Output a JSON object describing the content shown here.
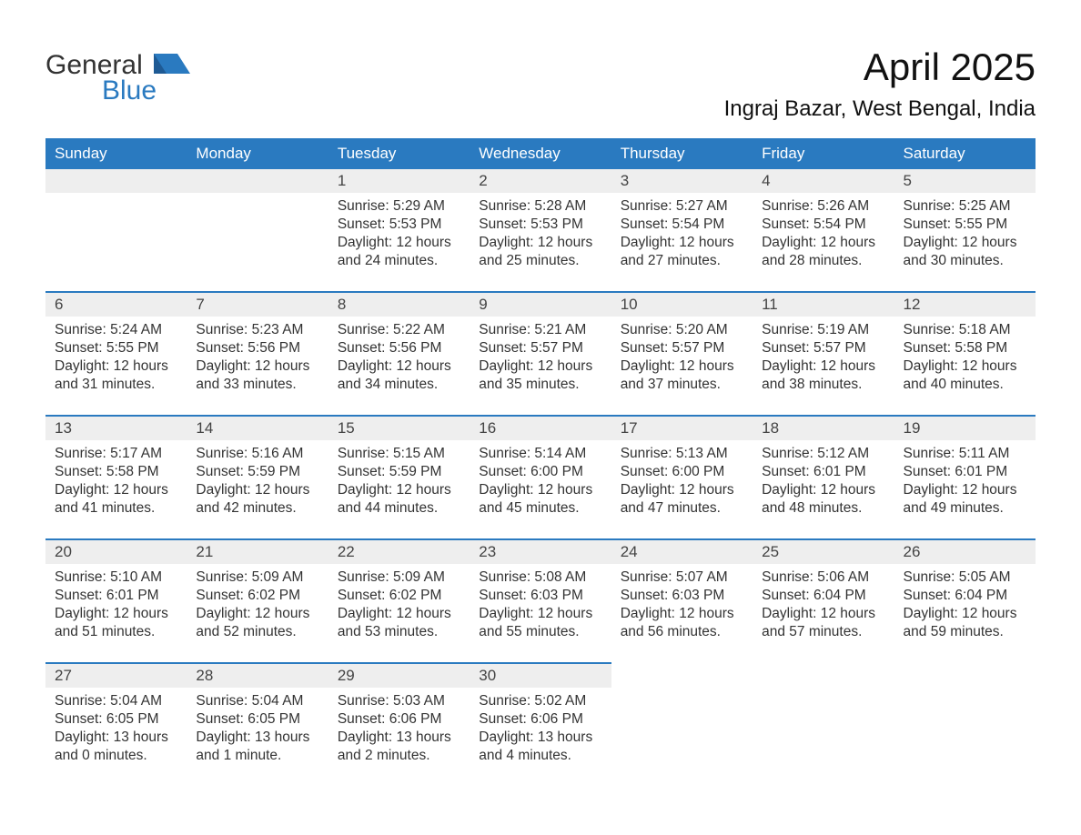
{
  "brand": {
    "part1": "General",
    "part2": "Blue"
  },
  "title": "April 2025",
  "location": "Ingraj Bazar, West Bengal, India",
  "colors": {
    "header_bg": "#2a7ac0",
    "header_text": "#ffffff",
    "daynum_bg": "#eeeeee",
    "border": "#2a7ac0",
    "body_text": "#333333",
    "page_bg": "#ffffff"
  },
  "fonts": {
    "title_size": 42,
    "location_size": 24,
    "header_size": 17,
    "body_size": 15.5
  },
  "weekdays": [
    "Sunday",
    "Monday",
    "Tuesday",
    "Wednesday",
    "Thursday",
    "Friday",
    "Saturday"
  ],
  "weeks": [
    [
      null,
      null,
      {
        "d": "1",
        "sr": "Sunrise: 5:29 AM",
        "ss": "Sunset: 5:53 PM",
        "dl1": "Daylight: 12 hours",
        "dl2": "and 24 minutes."
      },
      {
        "d": "2",
        "sr": "Sunrise: 5:28 AM",
        "ss": "Sunset: 5:53 PM",
        "dl1": "Daylight: 12 hours",
        "dl2": "and 25 minutes."
      },
      {
        "d": "3",
        "sr": "Sunrise: 5:27 AM",
        "ss": "Sunset: 5:54 PM",
        "dl1": "Daylight: 12 hours",
        "dl2": "and 27 minutes."
      },
      {
        "d": "4",
        "sr": "Sunrise: 5:26 AM",
        "ss": "Sunset: 5:54 PM",
        "dl1": "Daylight: 12 hours",
        "dl2": "and 28 minutes."
      },
      {
        "d": "5",
        "sr": "Sunrise: 5:25 AM",
        "ss": "Sunset: 5:55 PM",
        "dl1": "Daylight: 12 hours",
        "dl2": "and 30 minutes."
      }
    ],
    [
      {
        "d": "6",
        "sr": "Sunrise: 5:24 AM",
        "ss": "Sunset: 5:55 PM",
        "dl1": "Daylight: 12 hours",
        "dl2": "and 31 minutes."
      },
      {
        "d": "7",
        "sr": "Sunrise: 5:23 AM",
        "ss": "Sunset: 5:56 PM",
        "dl1": "Daylight: 12 hours",
        "dl2": "and 33 minutes."
      },
      {
        "d": "8",
        "sr": "Sunrise: 5:22 AM",
        "ss": "Sunset: 5:56 PM",
        "dl1": "Daylight: 12 hours",
        "dl2": "and 34 minutes."
      },
      {
        "d": "9",
        "sr": "Sunrise: 5:21 AM",
        "ss": "Sunset: 5:57 PM",
        "dl1": "Daylight: 12 hours",
        "dl2": "and 35 minutes."
      },
      {
        "d": "10",
        "sr": "Sunrise: 5:20 AM",
        "ss": "Sunset: 5:57 PM",
        "dl1": "Daylight: 12 hours",
        "dl2": "and 37 minutes."
      },
      {
        "d": "11",
        "sr": "Sunrise: 5:19 AM",
        "ss": "Sunset: 5:57 PM",
        "dl1": "Daylight: 12 hours",
        "dl2": "and 38 minutes."
      },
      {
        "d": "12",
        "sr": "Sunrise: 5:18 AM",
        "ss": "Sunset: 5:58 PM",
        "dl1": "Daylight: 12 hours",
        "dl2": "and 40 minutes."
      }
    ],
    [
      {
        "d": "13",
        "sr": "Sunrise: 5:17 AM",
        "ss": "Sunset: 5:58 PM",
        "dl1": "Daylight: 12 hours",
        "dl2": "and 41 minutes."
      },
      {
        "d": "14",
        "sr": "Sunrise: 5:16 AM",
        "ss": "Sunset: 5:59 PM",
        "dl1": "Daylight: 12 hours",
        "dl2": "and 42 minutes."
      },
      {
        "d": "15",
        "sr": "Sunrise: 5:15 AM",
        "ss": "Sunset: 5:59 PM",
        "dl1": "Daylight: 12 hours",
        "dl2": "and 44 minutes."
      },
      {
        "d": "16",
        "sr": "Sunrise: 5:14 AM",
        "ss": "Sunset: 6:00 PM",
        "dl1": "Daylight: 12 hours",
        "dl2": "and 45 minutes."
      },
      {
        "d": "17",
        "sr": "Sunrise: 5:13 AM",
        "ss": "Sunset: 6:00 PM",
        "dl1": "Daylight: 12 hours",
        "dl2": "and 47 minutes."
      },
      {
        "d": "18",
        "sr": "Sunrise: 5:12 AM",
        "ss": "Sunset: 6:01 PM",
        "dl1": "Daylight: 12 hours",
        "dl2": "and 48 minutes."
      },
      {
        "d": "19",
        "sr": "Sunrise: 5:11 AM",
        "ss": "Sunset: 6:01 PM",
        "dl1": "Daylight: 12 hours",
        "dl2": "and 49 minutes."
      }
    ],
    [
      {
        "d": "20",
        "sr": "Sunrise: 5:10 AM",
        "ss": "Sunset: 6:01 PM",
        "dl1": "Daylight: 12 hours",
        "dl2": "and 51 minutes."
      },
      {
        "d": "21",
        "sr": "Sunrise: 5:09 AM",
        "ss": "Sunset: 6:02 PM",
        "dl1": "Daylight: 12 hours",
        "dl2": "and 52 minutes."
      },
      {
        "d": "22",
        "sr": "Sunrise: 5:09 AM",
        "ss": "Sunset: 6:02 PM",
        "dl1": "Daylight: 12 hours",
        "dl2": "and 53 minutes."
      },
      {
        "d": "23",
        "sr": "Sunrise: 5:08 AM",
        "ss": "Sunset: 6:03 PM",
        "dl1": "Daylight: 12 hours",
        "dl2": "and 55 minutes."
      },
      {
        "d": "24",
        "sr": "Sunrise: 5:07 AM",
        "ss": "Sunset: 6:03 PM",
        "dl1": "Daylight: 12 hours",
        "dl2": "and 56 minutes."
      },
      {
        "d": "25",
        "sr": "Sunrise: 5:06 AM",
        "ss": "Sunset: 6:04 PM",
        "dl1": "Daylight: 12 hours",
        "dl2": "and 57 minutes."
      },
      {
        "d": "26",
        "sr": "Sunrise: 5:05 AM",
        "ss": "Sunset: 6:04 PM",
        "dl1": "Daylight: 12 hours",
        "dl2": "and 59 minutes."
      }
    ],
    [
      {
        "d": "27",
        "sr": "Sunrise: 5:04 AM",
        "ss": "Sunset: 6:05 PM",
        "dl1": "Daylight: 13 hours",
        "dl2": "and 0 minutes."
      },
      {
        "d": "28",
        "sr": "Sunrise: 5:04 AM",
        "ss": "Sunset: 6:05 PM",
        "dl1": "Daylight: 13 hours",
        "dl2": "and 1 minute."
      },
      {
        "d": "29",
        "sr": "Sunrise: 5:03 AM",
        "ss": "Sunset: 6:06 PM",
        "dl1": "Daylight: 13 hours",
        "dl2": "and 2 minutes."
      },
      {
        "d": "30",
        "sr": "Sunrise: 5:02 AM",
        "ss": "Sunset: 6:06 PM",
        "dl1": "Daylight: 13 hours",
        "dl2": "and 4 minutes."
      },
      null,
      null,
      null
    ]
  ]
}
